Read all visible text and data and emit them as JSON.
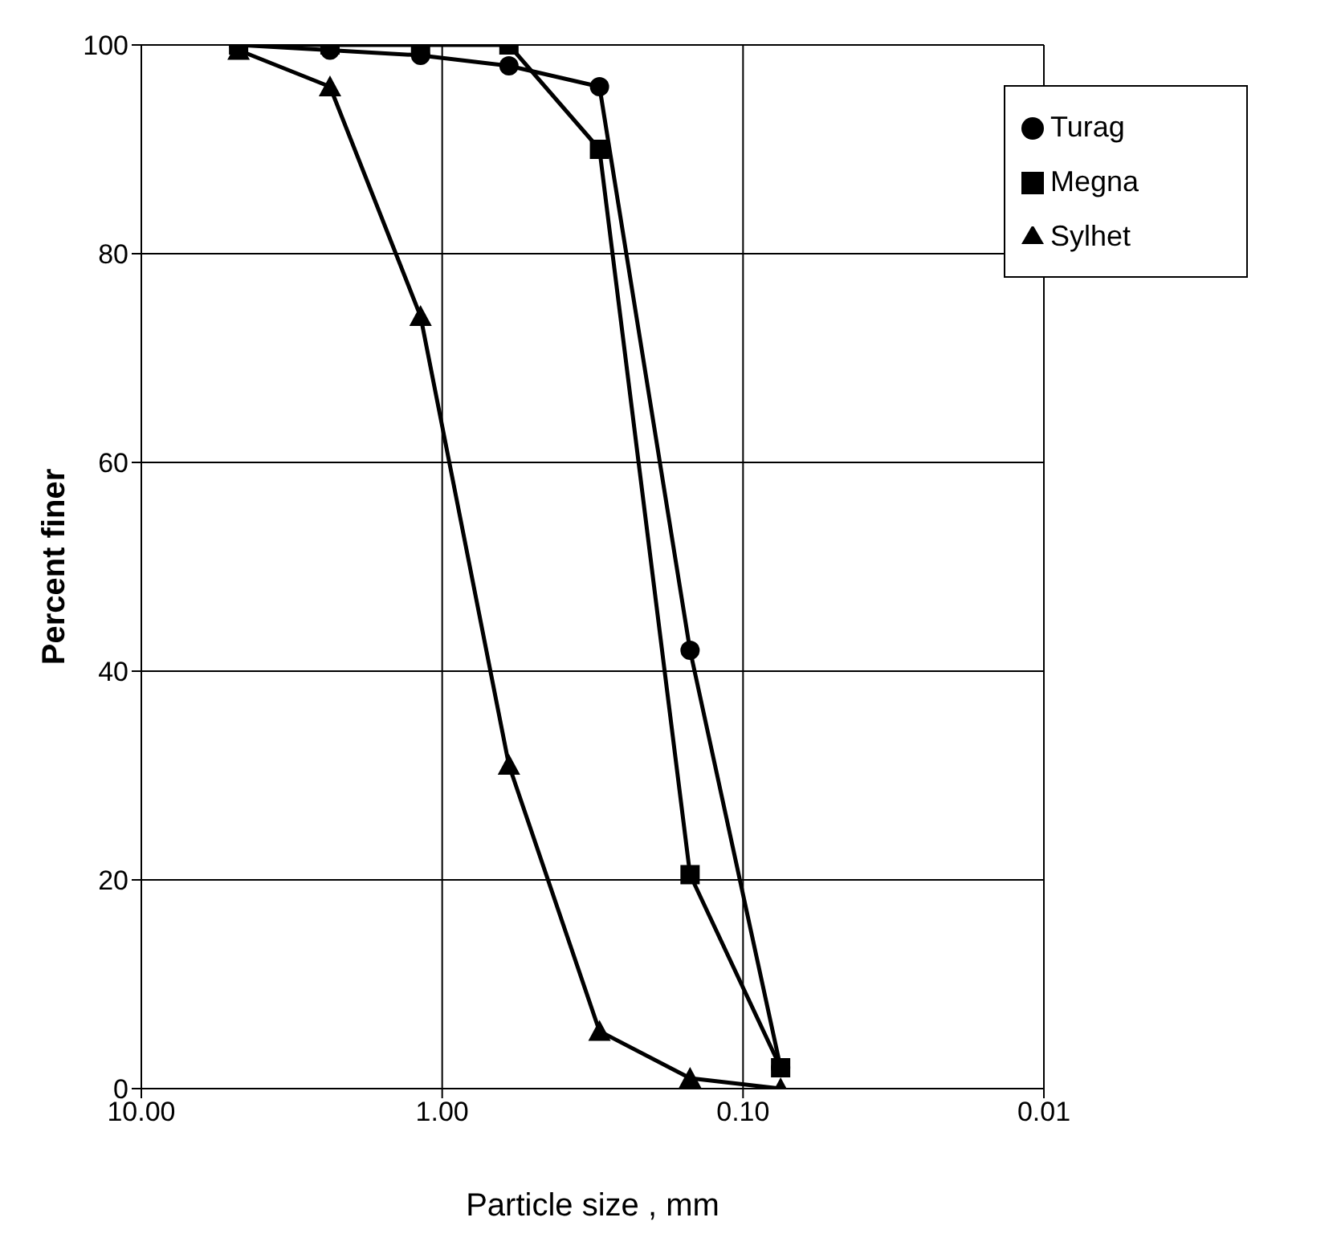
{
  "chart_data": {
    "type": "line",
    "xlabel": "Particle size , mm",
    "ylabel": "Percent finer",
    "x": [
      4.75,
      2.36,
      1.18,
      0.6,
      0.3,
      0.15,
      0.075
    ],
    "series": [
      {
        "name": "Turag",
        "color": "#000000",
        "marker": "circle",
        "values": [
          100,
          99.5,
          99,
          98,
          96,
          42,
          2
        ]
      },
      {
        "name": "Megna",
        "color": "#000000",
        "marker": "square",
        "values": [
          100,
          100,
          100,
          100,
          90,
          20.5,
          2
        ]
      },
      {
        "name": "Sylhet",
        "color": "#000000",
        "marker": "triangle",
        "values": [
          99.5,
          96,
          74,
          31,
          5.5,
          1,
          0
        ]
      }
    ],
    "log": "x",
    "xlim": [
      10,
      0.01
    ],
    "xticks": [
      {
        "value": 10,
        "label": "10.00"
      },
      {
        "value": 1,
        "label": "1.00"
      },
      {
        "value": 0.1,
        "label": "0.10"
      },
      {
        "value": 0.01,
        "label": "0.01"
      }
    ],
    "ylim": [
      0,
      100
    ],
    "yticks": [
      0,
      20,
      40,
      60,
      80,
      100
    ],
    "grid": true,
    "legend": "top right"
  }
}
